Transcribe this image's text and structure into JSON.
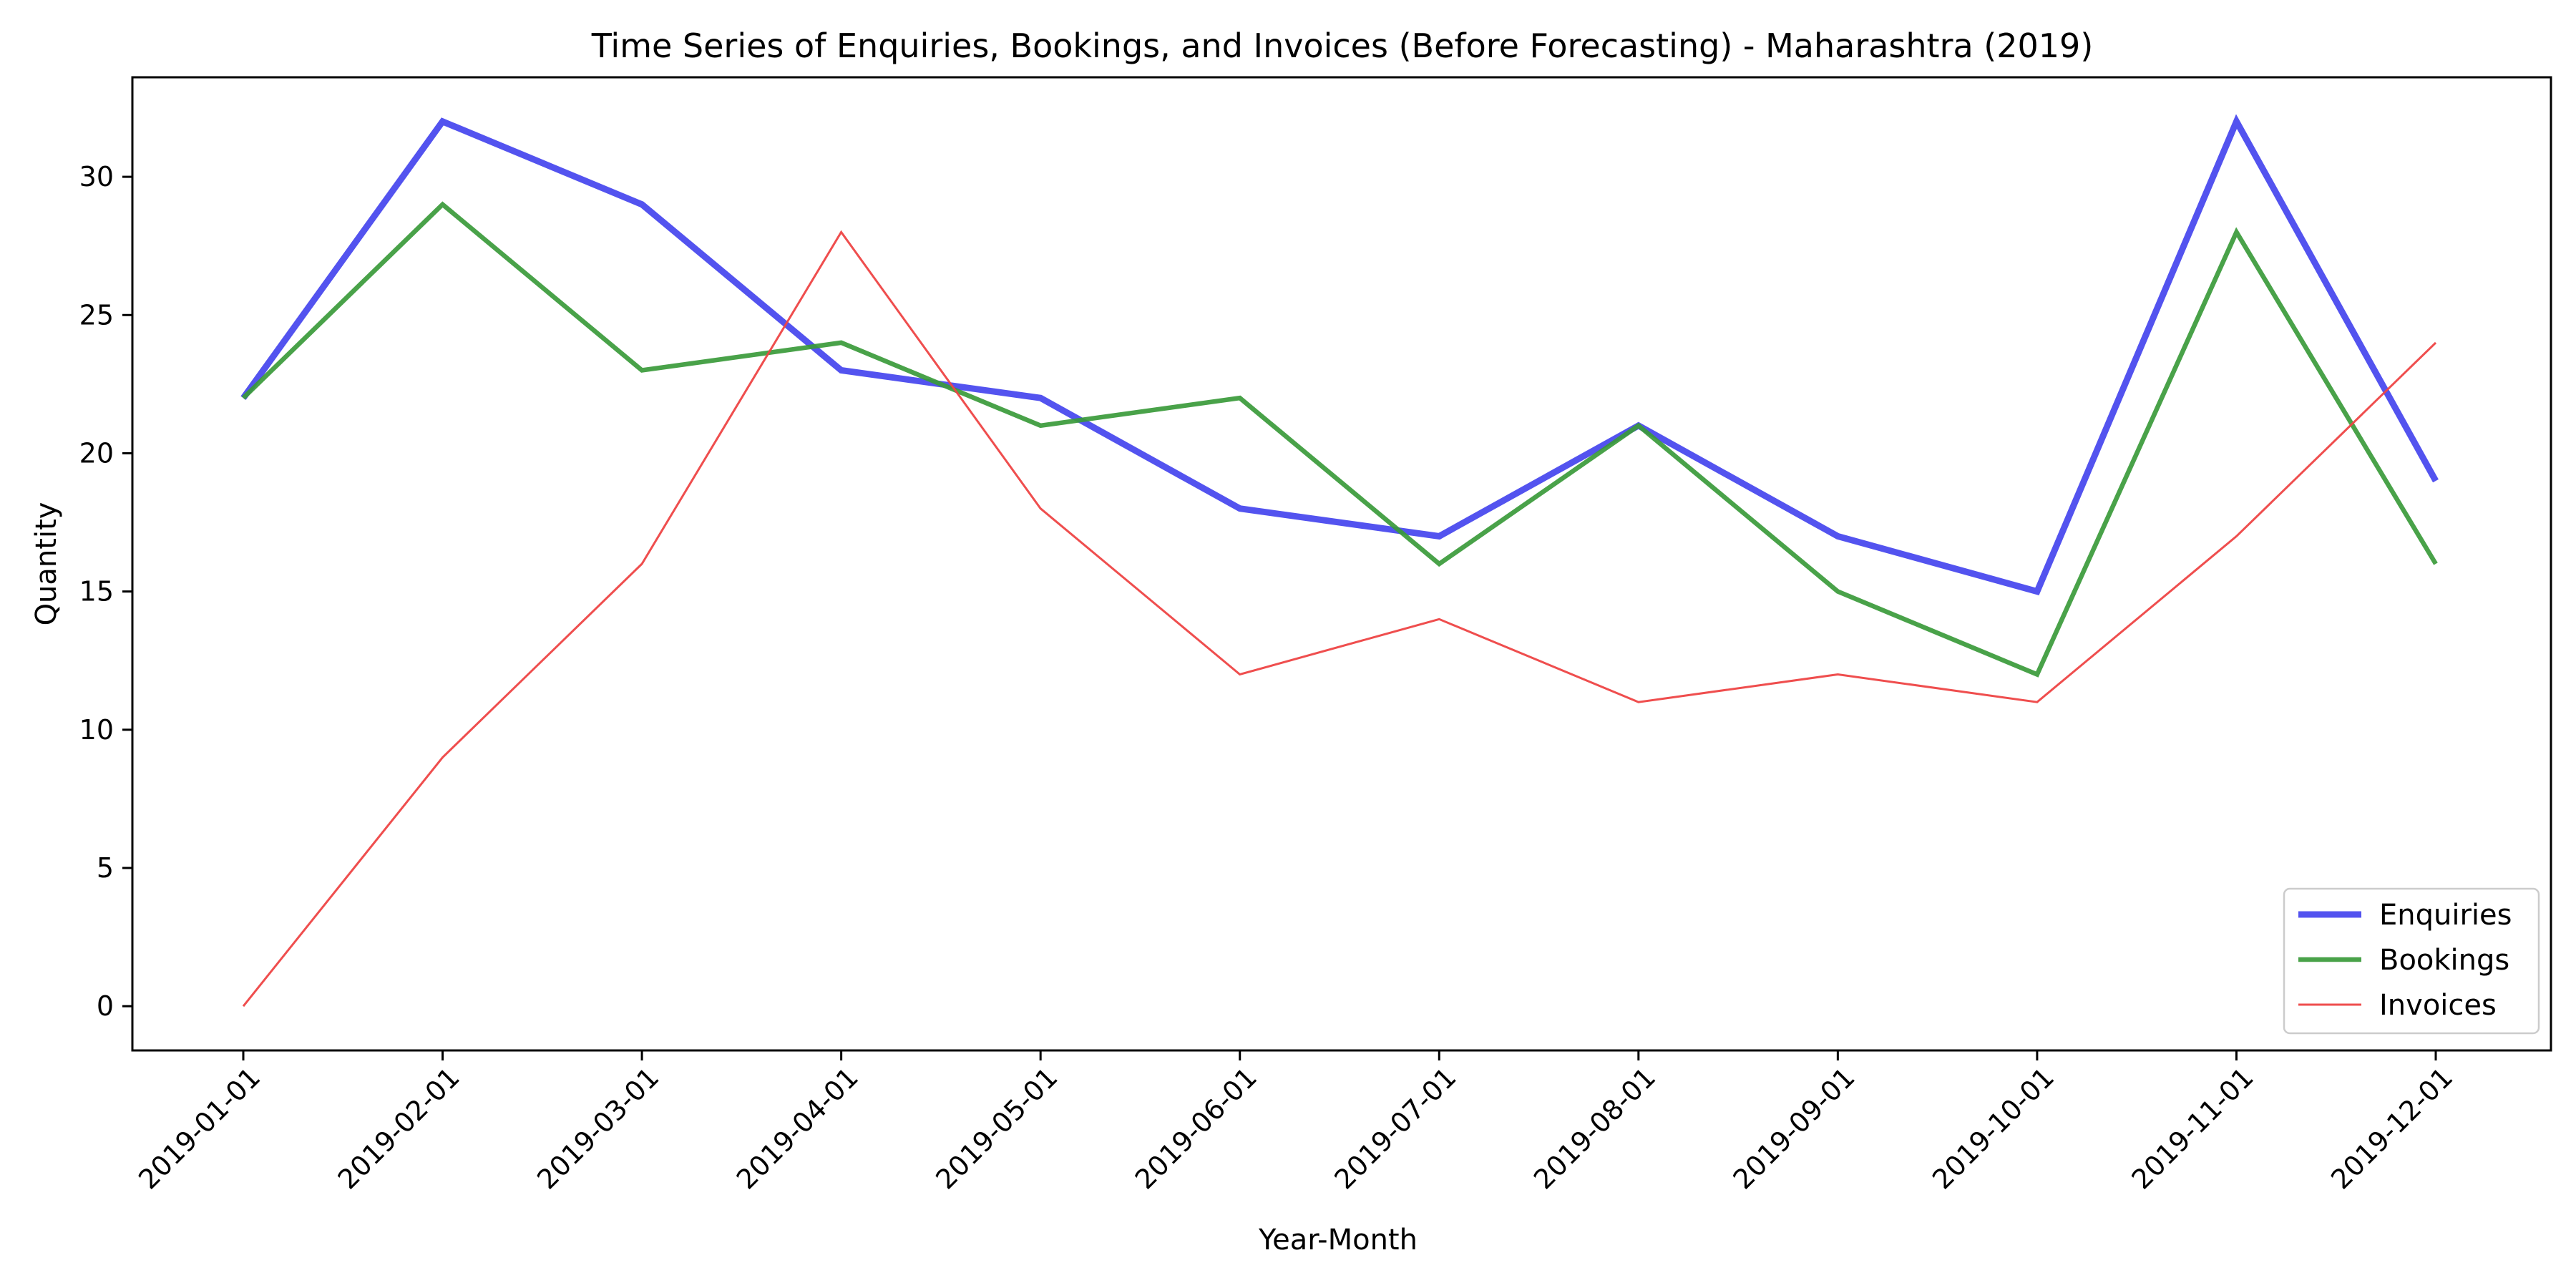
{
  "chart_data": {
    "type": "line",
    "title": "Time Series of Enquiries, Bookings, and Invoices (Before Forecasting) - Maharashtra (2019)",
    "xlabel": "Year-Month",
    "ylabel": "Quantity",
    "categories": [
      "2019-01-01",
      "2019-02-01",
      "2019-03-01",
      "2019-04-01",
      "2019-05-01",
      "2019-06-01",
      "2019-07-01",
      "2019-08-01",
      "2019-09-01",
      "2019-10-01",
      "2019-11-01",
      "2019-12-01"
    ],
    "ylim": [
      -1.6,
      33.6
    ],
    "yticks": [
      0,
      5,
      10,
      15,
      20,
      25,
      30
    ],
    "grid": false,
    "legend_position": "lower right",
    "series": [
      {
        "name": "Enquiries",
        "color": "#4444ee",
        "values": [
          22,
          32,
          29,
          23,
          22,
          18,
          17,
          21,
          17,
          15,
          32,
          19
        ]
      },
      {
        "name": "Bookings",
        "color": "#3a9a3a",
        "values": [
          22,
          29,
          23,
          24,
          21,
          22,
          16,
          21,
          15,
          12,
          28,
          16
        ]
      },
      {
        "name": "Invoices",
        "color": "#ee4444",
        "values": [
          0,
          9,
          16,
          28,
          18,
          12,
          14,
          11,
          12,
          11,
          17,
          24
        ]
      }
    ]
  }
}
